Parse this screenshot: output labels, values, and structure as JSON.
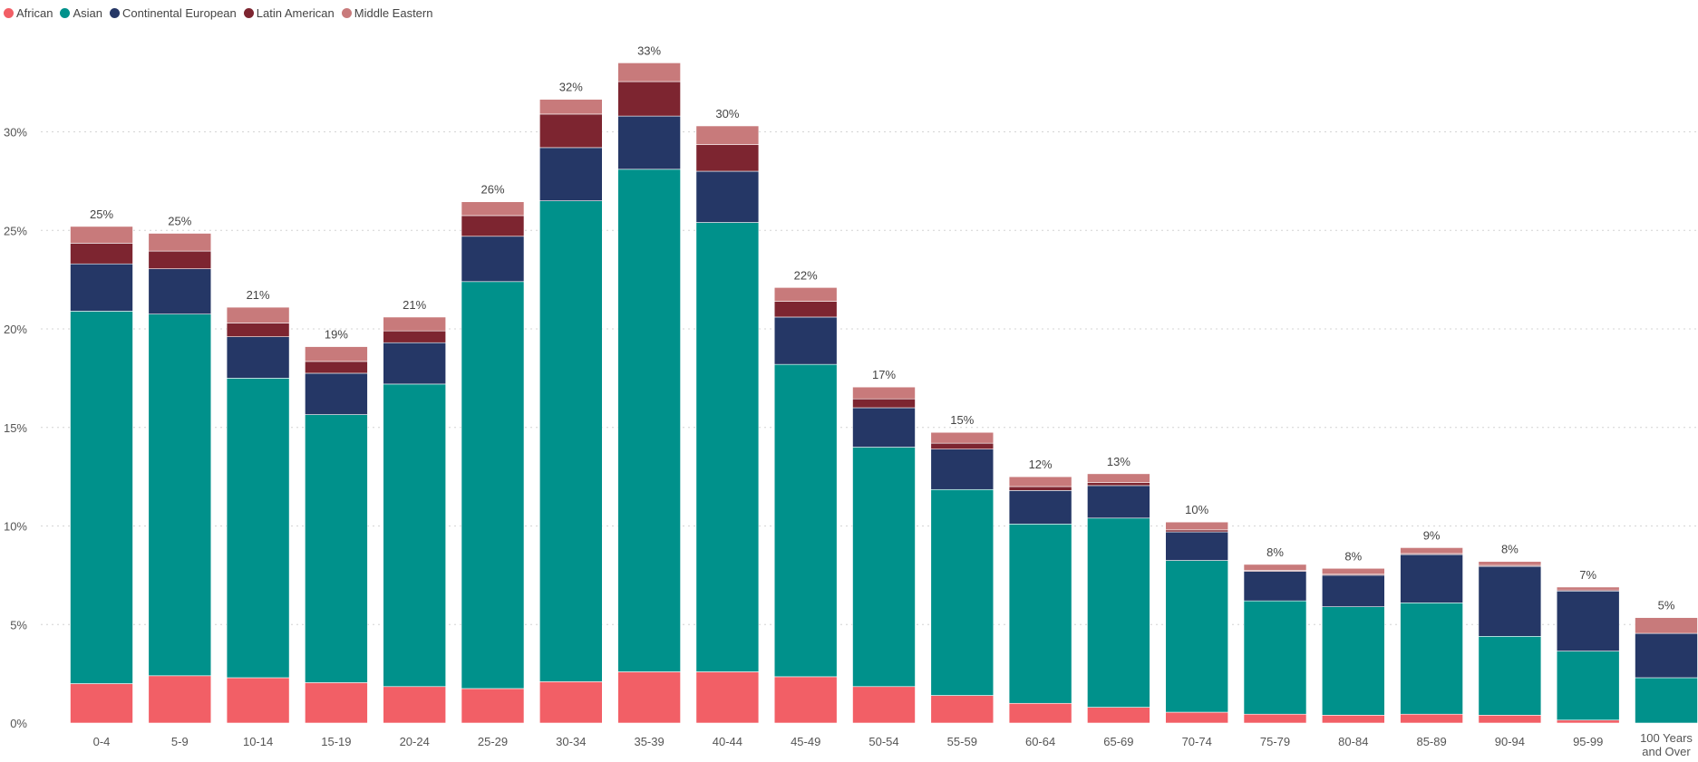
{
  "chart_data": {
    "type": "bar",
    "stacked": true,
    "title": "",
    "xlabel": "",
    "ylabel": "",
    "ylim": [
      0,
      35
    ],
    "yticks": [
      0,
      5,
      10,
      15,
      20,
      25,
      30
    ],
    "ytick_labels": [
      "0%",
      "5%",
      "10%",
      "15%",
      "20%",
      "25%",
      "30%"
    ],
    "grid": true,
    "legend_position": "top-left",
    "categories": [
      "0-4",
      "5-9",
      "10-14",
      "15-19",
      "20-24",
      "25-29",
      "30-34",
      "35-39",
      "40-44",
      "45-49",
      "50-54",
      "55-59",
      "60-64",
      "65-69",
      "70-74",
      "75-79",
      "80-84",
      "85-89",
      "90-94",
      "95-99",
      "100 Years and Over"
    ],
    "series": [
      {
        "name": "African",
        "color": "#f25f66",
        "values": [
          2.0,
          2.4,
          2.3,
          2.05,
          1.85,
          1.75,
          2.1,
          2.6,
          2.6,
          2.35,
          1.85,
          1.4,
          1.0,
          0.8,
          0.55,
          0.45,
          0.4,
          0.45,
          0.4,
          0.15,
          0.0
        ]
      },
      {
        "name": "Asian",
        "color": "#00918b",
        "values": [
          18.9,
          18.35,
          15.2,
          13.6,
          15.35,
          20.65,
          24.4,
          25.5,
          22.8,
          15.85,
          12.15,
          10.45,
          9.1,
          9.6,
          7.7,
          5.75,
          5.5,
          5.65,
          4.0,
          3.5,
          2.3
        ]
      },
      {
        "name": "Continental European",
        "color": "#253766",
        "values": [
          2.4,
          2.3,
          2.1,
          2.1,
          2.1,
          2.3,
          2.7,
          2.7,
          2.6,
          2.4,
          2.0,
          2.05,
          1.7,
          1.65,
          1.45,
          1.5,
          1.6,
          2.45,
          3.55,
          3.05,
          2.25
        ]
      },
      {
        "name": "Latin American",
        "color": "#7d2530",
        "values": [
          1.05,
          0.9,
          0.7,
          0.6,
          0.6,
          1.05,
          1.7,
          1.75,
          1.35,
          0.8,
          0.45,
          0.3,
          0.2,
          0.15,
          0.1,
          0.05,
          0.05,
          0.05,
          0.05,
          0.05,
          0.0
        ]
      },
      {
        "name": "Middle Eastern",
        "color": "#c87a7b",
        "values": [
          0.85,
          0.9,
          0.8,
          0.75,
          0.7,
          0.7,
          0.75,
          0.95,
          0.95,
          0.7,
          0.6,
          0.55,
          0.5,
          0.45,
          0.4,
          0.3,
          0.3,
          0.3,
          0.2,
          0.15,
          0.8
        ]
      }
    ],
    "total_labels": [
      "25%",
      "25%",
      "21%",
      "19%",
      "21%",
      "26%",
      "32%",
      "33%",
      "30%",
      "22%",
      "17%",
      "15%",
      "12%",
      "13%",
      "10%",
      "8%",
      "8%",
      "9%",
      "8%",
      "7%",
      "5%"
    ]
  }
}
